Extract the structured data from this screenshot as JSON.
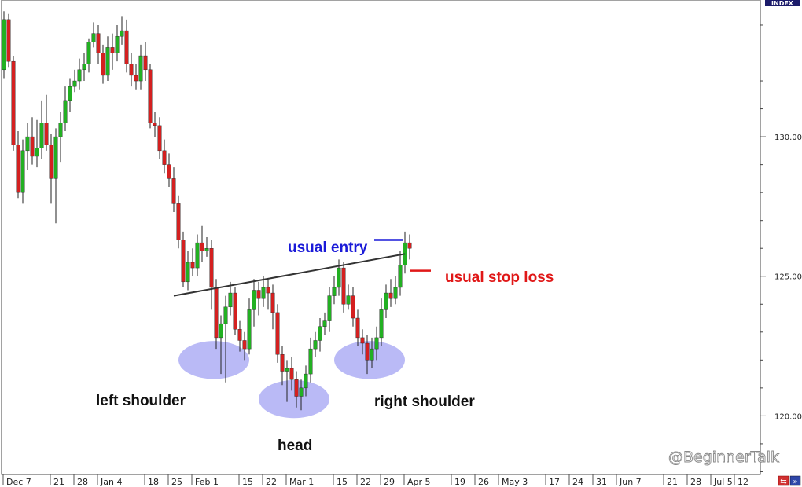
{
  "chart_data": {
    "type": "candlestick",
    "title": "",
    "index_label": "INDEX",
    "watermark": "@BeginnerTalk",
    "colors": {
      "up": "#22b022",
      "down": "#d42020",
      "wick": "#222222",
      "entry": "#1a1ad8",
      "stop": "#e01818",
      "neckline": "#333333",
      "zone": "#8c8cf0"
    },
    "y_ticks": [
      "130.00",
      "125.00",
      "120.00"
    ],
    "y_tick_values": [
      130,
      125,
      120
    ],
    "ylim": [
      117.9,
      134.9
    ],
    "x_ticks": [
      {
        "label": "Dec 7",
        "i": 0
      },
      {
        "label": "21",
        "i": 10
      },
      {
        "label": "28",
        "i": 15
      },
      {
        "label": "Jan 4",
        "i": 20
      },
      {
        "label": "18",
        "i": 30
      },
      {
        "label": "25",
        "i": 35
      },
      {
        "label": "Feb 1",
        "i": 40
      },
      {
        "label": "15",
        "i": 50
      },
      {
        "label": "22",
        "i": 55
      },
      {
        "label": "Mar 1",
        "i": 60
      },
      {
        "label": "15",
        "i": 70
      },
      {
        "label": "22",
        "i": 75
      },
      {
        "label": "29",
        "i": 80
      },
      {
        "label": "Apr 5",
        "i": 85
      },
      {
        "label": "19",
        "i": 95
      },
      {
        "label": "26",
        "i": 100
      },
      {
        "label": "May 3",
        "i": 105
      },
      {
        "label": "17",
        "i": 115
      },
      {
        "label": "24",
        "i": 120
      },
      {
        "label": "31",
        "i": 125
      },
      {
        "label": "Jun 7",
        "i": 130
      },
      {
        "label": "21",
        "i": 140
      },
      {
        "label": "28",
        "i": 145
      },
      {
        "label": "Jul 5",
        "i": 150
      },
      {
        "label": "12",
        "i": 155
      }
    ],
    "candles": [
      [
        132.4,
        134.2,
        134.5,
        132.1
      ],
      [
        134.2,
        132.7,
        134.4,
        132.5
      ],
      [
        132.7,
        129.7,
        132.9,
        129.5
      ],
      [
        129.7,
        128.0,
        130.2,
        127.8
      ],
      [
        128.0,
        129.5,
        129.9,
        127.6
      ],
      [
        129.5,
        130.0,
        130.5,
        128.8
      ],
      [
        130.0,
        129.3,
        130.7,
        129.0
      ],
      [
        129.3,
        129.6,
        130.6,
        128.9
      ],
      [
        129.6,
        130.5,
        131.3,
        129.2
      ],
      [
        130.5,
        129.7,
        131.5,
        129.5
      ],
      [
        129.7,
        128.5,
        130.1,
        127.6
      ],
      [
        128.5,
        130.0,
        130.3,
        126.9
      ],
      [
        130.0,
        130.5,
        130.9,
        129.1
      ],
      [
        130.5,
        131.3,
        131.8,
        130.2
      ],
      [
        131.3,
        131.8,
        132.1,
        130.9
      ],
      [
        131.8,
        132.0,
        132.4,
        131.6
      ],
      [
        132.0,
        132.4,
        132.8,
        131.7
      ],
      [
        132.4,
        132.6,
        133.0,
        132.0
      ],
      [
        132.6,
        133.4,
        133.5,
        132.3
      ],
      [
        133.4,
        133.7,
        134.1,
        133.2
      ],
      [
        133.7,
        133.0,
        134.0,
        132.6
      ],
      [
        133.0,
        132.2,
        133.3,
        131.9
      ],
      [
        132.2,
        133.2,
        133.6,
        132.0
      ],
      [
        133.2,
        133.0,
        133.7,
        132.4
      ],
      [
        133.0,
        133.6,
        134.0,
        132.7
      ],
      [
        133.6,
        133.8,
        134.3,
        133.3
      ],
      [
        133.8,
        132.6,
        134.2,
        132.3
      ],
      [
        132.6,
        132.2,
        133.0,
        131.8
      ],
      [
        132.2,
        132.0,
        132.6,
        131.7
      ],
      [
        132.0,
        132.9,
        133.3,
        131.7
      ],
      [
        132.9,
        132.4,
        133.4,
        132.0
      ],
      [
        132.4,
        130.5,
        132.6,
        130.3
      ],
      [
        130.5,
        130.4,
        130.9,
        130.0
      ],
      [
        130.4,
        129.5,
        130.7,
        129.2
      ],
      [
        129.5,
        129.0,
        129.9,
        128.7
      ],
      [
        129.0,
        128.5,
        129.4,
        128.2
      ],
      [
        128.5,
        127.6,
        128.9,
        127.3
      ],
      [
        127.6,
        126.3,
        127.9,
        126.0
      ],
      [
        126.3,
        124.8,
        126.6,
        124.6
      ],
      [
        124.8,
        125.5,
        125.9,
        124.5
      ],
      [
        125.5,
        125.3,
        126.0,
        125.0
      ],
      [
        125.3,
        126.2,
        126.5,
        125.0
      ],
      [
        126.2,
        125.9,
        126.8,
        125.5
      ],
      [
        125.9,
        126.0,
        126.4,
        125.7
      ],
      [
        126.0,
        124.6,
        126.3,
        123.8
      ],
      [
        124.6,
        122.8,
        124.9,
        122.4
      ],
      [
        122.8,
        123.3,
        123.6,
        121.5
      ],
      [
        123.3,
        123.9,
        124.3,
        121.2
      ],
      [
        123.9,
        124.4,
        124.8,
        123.6
      ],
      [
        124.4,
        123.1,
        124.6,
        122.9
      ],
      [
        123.1,
        122.7,
        123.4,
        122.3
      ],
      [
        122.7,
        122.4,
        123.0,
        122.0
      ],
      [
        122.4,
        123.8,
        124.2,
        122.2
      ],
      [
        123.8,
        124.5,
        124.9,
        123.2
      ],
      [
        124.5,
        124.2,
        124.8,
        123.6
      ],
      [
        124.2,
        124.6,
        125.0,
        123.9
      ],
      [
        124.6,
        124.4,
        124.9,
        123.8
      ],
      [
        124.4,
        123.7,
        124.7,
        123.1
      ],
      [
        123.7,
        122.2,
        124.0,
        121.9
      ],
      [
        122.2,
        121.6,
        122.5,
        121.1
      ],
      [
        121.6,
        121.7,
        122.0,
        120.5
      ],
      [
        121.7,
        121.3,
        122.1,
        120.9
      ],
      [
        121.3,
        120.7,
        121.6,
        120.3
      ],
      [
        120.7,
        121.0,
        121.3,
        120.2
      ],
      [
        121.0,
        121.5,
        121.8,
        120.7
      ],
      [
        121.5,
        122.4,
        122.8,
        121.2
      ],
      [
        122.4,
        122.7,
        123.0,
        122.1
      ],
      [
        122.7,
        123.2,
        123.5,
        122.3
      ],
      [
        123.2,
        123.4,
        123.7,
        122.9
      ],
      [
        123.4,
        124.3,
        124.6,
        123.0
      ],
      [
        124.3,
        124.6,
        125.0,
        124.0
      ],
      [
        124.6,
        125.3,
        125.6,
        124.3
      ],
      [
        125.3,
        124.0,
        125.5,
        123.7
      ],
      [
        124.0,
        124.3,
        124.7,
        123.8
      ],
      [
        124.3,
        123.5,
        124.6,
        123.2
      ],
      [
        123.5,
        122.8,
        123.8,
        122.5
      ],
      [
        122.8,
        122.6,
        123.1,
        122.2
      ],
      [
        122.6,
        122.0,
        122.9,
        121.5
      ],
      [
        122.0,
        122.4,
        122.8,
        121.7
      ],
      [
        122.4,
        122.8,
        123.2,
        122.0
      ],
      [
        122.8,
        123.8,
        124.2,
        122.5
      ],
      [
        123.8,
        124.4,
        124.7,
        123.5
      ],
      [
        124.4,
        124.2,
        124.9,
        123.9
      ],
      [
        124.2,
        124.6,
        125.0,
        124.0
      ],
      [
        124.6,
        125.4,
        125.9,
        124.3
      ],
      [
        125.4,
        126.2,
        126.6,
        125.1
      ],
      [
        126.2,
        126.0,
        126.5,
        125.6
      ]
    ],
    "neckline": [
      [
        36.0,
        124.3
      ],
      [
        85.0,
        125.8
      ]
    ],
    "entry_line": {
      "i_from": 78.5,
      "i_to": 84.5,
      "y": 126.3
    },
    "stop_line": {
      "i_from": 86.0,
      "i_to": 90.5,
      "y": 125.2
    },
    "zones": [
      {
        "label": "left shoulder",
        "i": 44.5,
        "y": 122.0,
        "ry": 0.68
      },
      {
        "label": "head",
        "i": 61.5,
        "y": 120.6,
        "ry": 0.68
      },
      {
        "label": "right shoulder",
        "i": 77.5,
        "y": 122.0,
        "ry": 0.68
      }
    ],
    "annotations": {
      "left_shoulder": "left shoulder",
      "head": "head",
      "right_shoulder": "right shoulder",
      "usual_entry": "usual entry",
      "usual_stop_loss": "usual stop loss"
    }
  }
}
